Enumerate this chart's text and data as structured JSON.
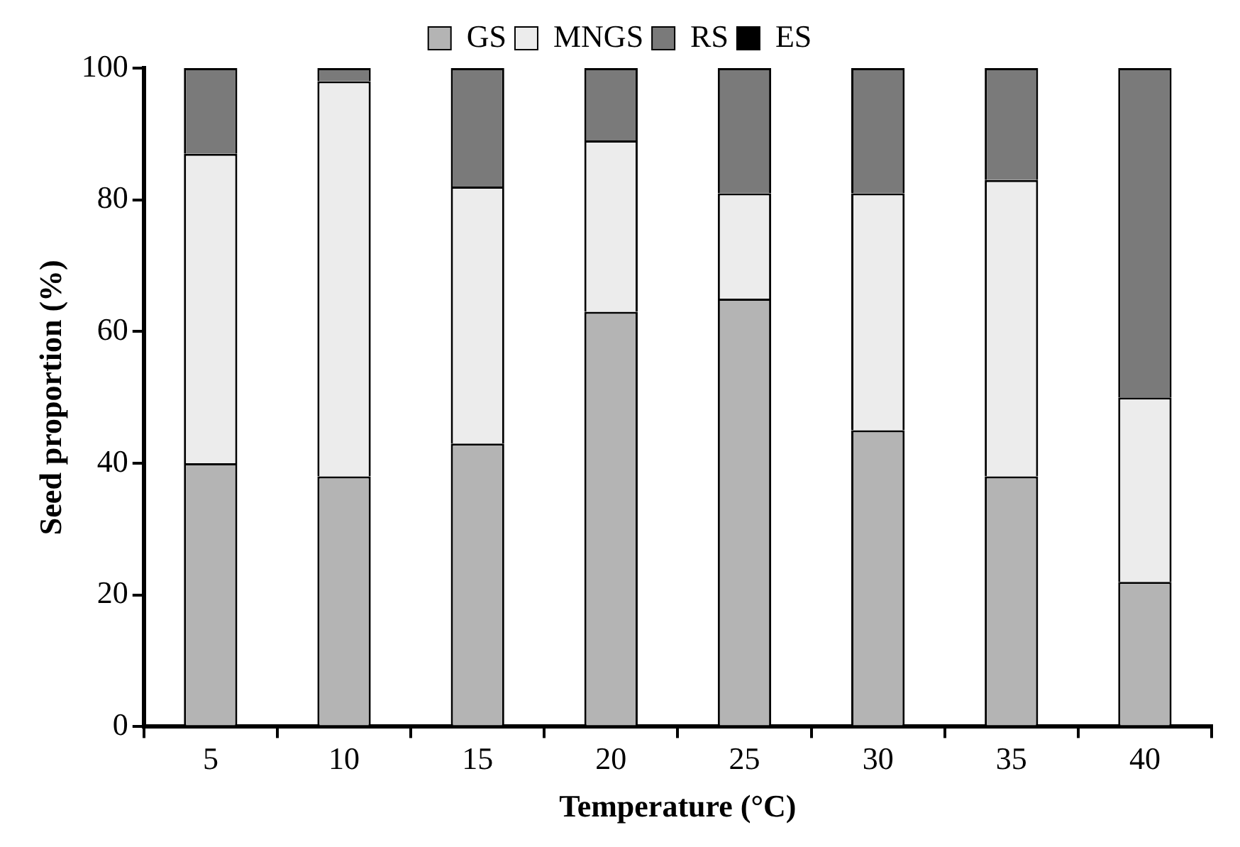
{
  "chart_data": {
    "type": "bar",
    "stacked": true,
    "xlabel": "Temperature (°C)",
    "ylabel": "Seed proportion (%)",
    "categories": [
      "5",
      "10",
      "15",
      "20",
      "25",
      "30",
      "35",
      "40"
    ],
    "series": [
      {
        "name": "GS",
        "color": "#b4b4b4",
        "values": [
          40,
          38,
          43,
          63,
          65,
          45,
          38,
          22
        ]
      },
      {
        "name": "MNGS",
        "color": "#ececec",
        "values": [
          47,
          60,
          39,
          26,
          16,
          36,
          45,
          28
        ]
      },
      {
        "name": "RS",
        "color": "#7a7a7a",
        "values": [
          13,
          2,
          18,
          11,
          19,
          19,
          17,
          50
        ]
      },
      {
        "name": "ES",
        "color": "#000000",
        "values": [
          0,
          0,
          0,
          0,
          0,
          0,
          0,
          0
        ]
      }
    ],
    "ylim": [
      0,
      100
    ],
    "yticks": [
      0,
      20,
      40,
      60,
      80,
      100
    ],
    "grid": false,
    "legend": "top"
  }
}
